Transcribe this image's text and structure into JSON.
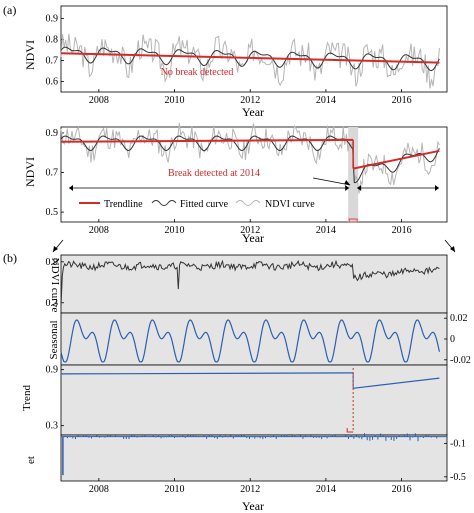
{
  "panel_labels": {
    "a": "(a)",
    "b": "(b)"
  },
  "colors": {
    "trend_red": "#d42a2a",
    "ndvi_gray": "#b5b5b5",
    "fitted_dark": "#333333",
    "seasonal_blue": "#2b5fb3",
    "panel_bg": "#e4e4e4",
    "annotation_red": "#d42a2a"
  },
  "chart_data": [
    {
      "id": "a1",
      "type": "line",
      "xlabel": "Year",
      "ylabel": "NDVI",
      "xlim": [
        2007.0,
        2017.2
      ],
      "ylim": [
        0.55,
        0.96
      ],
      "xticks": [
        2008,
        2010,
        2012,
        2014,
        2016
      ],
      "yticks": [
        0.6,
        0.7,
        0.8,
        0.9
      ],
      "annotation": "No break detected",
      "series": [
        {
          "role": "ndvi",
          "style": "gray",
          "generator": {
            "base_start": 0.735,
            "base_end": 0.695,
            "amp": 0.045,
            "noise": 0.065,
            "seed": 3
          }
        },
        {
          "role": "fitted",
          "style": "dark",
          "generator": {
            "base_start": 0.735,
            "base_end": 0.695,
            "amp": 0.03,
            "noise": 0.0,
            "seed": 5
          }
        },
        {
          "role": "trend",
          "style": "red",
          "x": [
            2007.0,
            2017.0
          ],
          "y": [
            0.735,
            0.69
          ]
        }
      ]
    },
    {
      "id": "a2",
      "type": "line",
      "xlabel": "Year",
      "ylabel": "NDVI",
      "xlim": [
        2007.0,
        2017.2
      ],
      "ylim": [
        0.45,
        0.93
      ],
      "xticks": [
        2008,
        2010,
        2012,
        2014,
        2016
      ],
      "yticks": [
        0.5,
        0.7,
        0.9
      ],
      "annotation": "Break detected at 2014",
      "break_x": 2014.72,
      "legend": {
        "position": "bottom-center",
        "entries": [
          {
            "label": "Trendline",
            "style": "red"
          },
          {
            "label": "Fitted curve",
            "style": "dark"
          },
          {
            "label": "NDVI curve",
            "style": "gray"
          }
        ]
      },
      "series": [
        {
          "role": "ndvi",
          "style": "gray",
          "generator": {
            "base_start": 0.855,
            "base_end": 0.855,
            "amp": 0.04,
            "noise": 0.06,
            "seed": 11,
            "break_x": 2014.72,
            "post_start": 0.68,
            "post_end": 0.81
          }
        },
        {
          "role": "fitted",
          "style": "dark",
          "generator": {
            "base_start": 0.855,
            "base_end": 0.855,
            "amp": 0.03,
            "noise": 0.0,
            "seed": 13,
            "break_x": 2014.72,
            "post_start": 0.69,
            "post_end": 0.81
          }
        },
        {
          "role": "trend",
          "style": "red",
          "segments": [
            {
              "x": [
                2007.0,
                2014.72
              ],
              "y": [
                0.855,
                0.865
              ]
            },
            {
              "x": [
                2014.72,
                2017.0
              ],
              "y": [
                0.72,
                0.81
              ]
            }
          ]
        }
      ]
    },
    {
      "id": "b",
      "type": "line",
      "xlabel": "Year",
      "xlim": [
        2007.0,
        2017.2
      ],
      "xticks": [
        2008,
        2010,
        2012,
        2014,
        2016
      ],
      "subpanels": [
        {
          "ylabel": "NDVI curve",
          "ylim": [
            0.15,
            1.0
          ],
          "yticks": [
            0.3,
            0.9
          ],
          "axis_side": "left",
          "style": "dark",
          "generator": {
            "kind": "ndvi",
            "base": 0.84,
            "noise": 0.05,
            "seed": 21,
            "break_x": 2014.72,
            "post_base": 0.68
          }
        },
        {
          "ylabel": "Seasonal",
          "ylim": [
            -0.025,
            0.025
          ],
          "yticks": [
            -0.02,
            0,
            0.02
          ],
          "axis_side": "right",
          "style": "blue",
          "generator": {
            "kind": "seasonal",
            "amp": 0.02
          }
        },
        {
          "ylabel": "Trend",
          "ylim": [
            0.2,
            0.95
          ],
          "yticks": [
            0.3,
            0.9
          ],
          "axis_side": "left",
          "style": "blue",
          "segments": [
            {
              "x": [
                2007.0,
                2014.72
              ],
              "y": [
                0.855,
                0.865
              ]
            },
            {
              "x": [
                2014.72,
                2017.0
              ],
              "y": [
                0.7,
                0.81
              ]
            }
          ]
        },
        {
          "ylabel": "et",
          "ylim": [
            -0.55,
            0.0
          ],
          "yticks": [
            -0.1,
            -0.5
          ],
          "axis_side": "right",
          "style": "blue_bars",
          "generator": {
            "kind": "residual",
            "seed": 31,
            "spike_x": 2007.05,
            "spike_y": -0.48
          }
        }
      ]
    }
  ]
}
